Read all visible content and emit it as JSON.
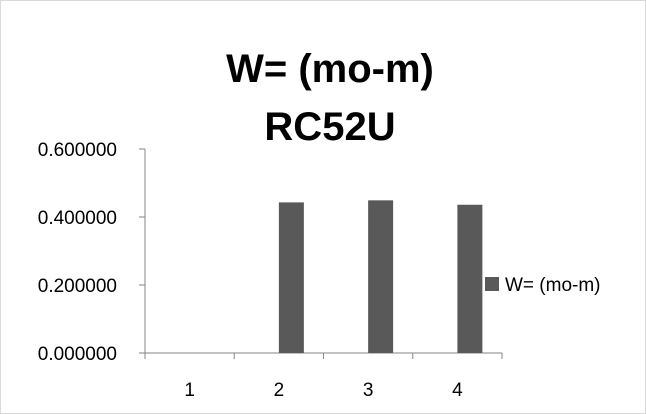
{
  "chart_data": {
    "type": "bar",
    "title_lines": [
      "W= (mo-m)",
      "RC52U"
    ],
    "categories": [
      "1",
      "2",
      "3",
      "4"
    ],
    "series": [
      {
        "name": "W= (mo-m)",
        "values": [
          0.0005,
          0.0005,
          0.0005,
          0.0005
        ],
        "color": "#7f7f7f"
      },
      {
        "name": "",
        "values": [
          0,
          0.443,
          0.449,
          0.436
        ],
        "color": "#595959"
      }
    ],
    "ylim": [
      0,
      0.6
    ],
    "yticks": [
      "0.000000",
      "0.200000",
      "0.400000",
      "0.600000"
    ],
    "ytick_values": [
      0,
      0.2,
      0.4,
      0.6
    ],
    "xlabel": "",
    "ylabel": "",
    "grid": false,
    "legend_position": "right"
  },
  "legend": {
    "label": "W= (mo-m)",
    "color": "#595959"
  }
}
